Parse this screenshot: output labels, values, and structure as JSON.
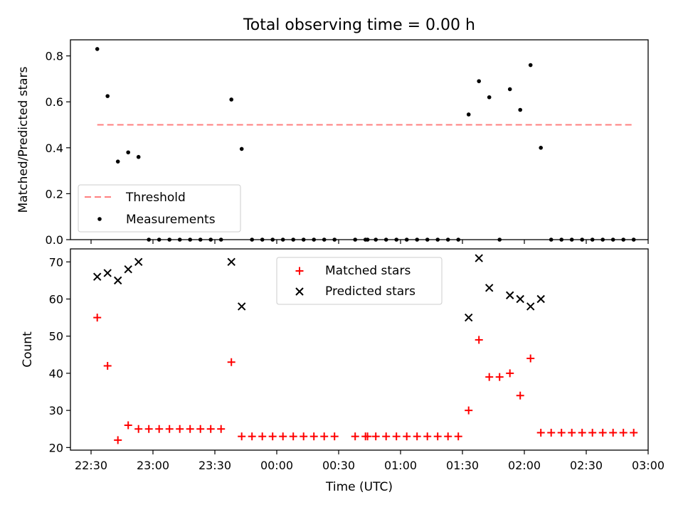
{
  "chart_data": [
    {
      "type": "scatter",
      "title": "Total observing time = 0.00 h",
      "ylabel": "Matched/Predicted stars",
      "xlabel": "",
      "ylim": [
        0,
        0.87
      ],
      "yticks": [
        0.0,
        0.2,
        0.4,
        0.6,
        0.8
      ],
      "legend": {
        "placement": "lower-left",
        "entries": [
          "Threshold",
          "Measurements"
        ]
      },
      "threshold": {
        "name": "Threshold",
        "value": 0.5,
        "x_start": "22:33",
        "x_end": "02:53",
        "color": "#ff7f7f",
        "style": "dashed"
      },
      "series": [
        {
          "name": "Measurements",
          "color": "#000000",
          "marker": "dot",
          "points": [
            [
              "22:33",
              0.83
            ],
            [
              "22:38",
              0.625
            ],
            [
              "22:43",
              0.34
            ],
            [
              "22:48",
              0.38
            ],
            [
              "22:53",
              0.36
            ],
            [
              "22:58",
              0
            ],
            [
              "23:03",
              0
            ],
            [
              "23:08",
              0
            ],
            [
              "23:13",
              0
            ],
            [
              "23:18",
              0
            ],
            [
              "23:23",
              0
            ],
            [
              "23:28",
              0
            ],
            [
              "23:33",
              0
            ],
            [
              "23:38",
              0.61
            ],
            [
              "23:43",
              0.395
            ],
            [
              "23:48",
              0
            ],
            [
              "23:53",
              0
            ],
            [
              "23:58",
              0
            ],
            [
              "00:03",
              0
            ],
            [
              "00:08",
              0
            ],
            [
              "00:13",
              0
            ],
            [
              "00:18",
              0
            ],
            [
              "00:23",
              0
            ],
            [
              "00:28",
              0
            ],
            [
              "00:38",
              0
            ],
            [
              "00:43",
              0
            ],
            [
              "00:44",
              0
            ],
            [
              "00:48",
              0
            ],
            [
              "00:53",
              0
            ],
            [
              "00:58",
              0
            ],
            [
              "01:03",
              0
            ],
            [
              "01:08",
              0
            ],
            [
              "01:13",
              0
            ],
            [
              "01:18",
              0
            ],
            [
              "01:23",
              0
            ],
            [
              "01:28",
              0
            ],
            [
              "01:33",
              0.545
            ],
            [
              "01:38",
              0.69
            ],
            [
              "01:43",
              0.62
            ],
            [
              "01:48",
              0
            ],
            [
              "01:53",
              0.655
            ],
            [
              "01:58",
              0.565
            ],
            [
              "02:03",
              0.76
            ],
            [
              "02:08",
              0.4
            ],
            [
              "02:13",
              0
            ],
            [
              "02:18",
              0
            ],
            [
              "02:23",
              0
            ],
            [
              "02:28",
              0
            ],
            [
              "02:33",
              0
            ],
            [
              "02:38",
              0
            ],
            [
              "02:43",
              0
            ],
            [
              "02:48",
              0
            ],
            [
              "02:53",
              0
            ]
          ]
        }
      ]
    },
    {
      "type": "scatter",
      "title": "",
      "xlabel": "Time (UTC)",
      "ylabel": "Count",
      "ylim": [
        19.3,
        73.5
      ],
      "yticks": [
        20,
        30,
        40,
        50,
        60,
        70
      ],
      "xlim": [
        "22:20",
        "03:00"
      ],
      "xticks": [
        "22:30",
        "23:00",
        "23:30",
        "00:00",
        "00:30",
        "01:00",
        "01:30",
        "02:00",
        "02:30",
        "03:00"
      ],
      "legend": {
        "placement": "upper-center",
        "entries": [
          "Matched stars",
          "Predicted stars"
        ]
      },
      "series": [
        {
          "name": "Matched stars",
          "color": "#ff0000",
          "marker": "plus",
          "points": [
            [
              "22:33",
              55
            ],
            [
              "22:38",
              42
            ],
            [
              "22:43",
              22
            ],
            [
              "22:48",
              26
            ],
            [
              "22:53",
              25
            ],
            [
              "22:58",
              25
            ],
            [
              "23:03",
              25
            ],
            [
              "23:08",
              25
            ],
            [
              "23:13",
              25
            ],
            [
              "23:18",
              25
            ],
            [
              "23:23",
              25
            ],
            [
              "23:28",
              25
            ],
            [
              "23:33",
              25
            ],
            [
              "23:38",
              43
            ],
            [
              "23:43",
              23
            ],
            [
              "23:48",
              23
            ],
            [
              "23:53",
              23
            ],
            [
              "23:58",
              23
            ],
            [
              "00:03",
              23
            ],
            [
              "00:08",
              23
            ],
            [
              "00:13",
              23
            ],
            [
              "00:18",
              23
            ],
            [
              "00:23",
              23
            ],
            [
              "00:28",
              23
            ],
            [
              "00:38",
              23
            ],
            [
              "00:43",
              23
            ],
            [
              "00:44",
              23
            ],
            [
              "00:48",
              23
            ],
            [
              "00:53",
              23
            ],
            [
              "00:58",
              23
            ],
            [
              "01:03",
              23
            ],
            [
              "01:08",
              23
            ],
            [
              "01:13",
              23
            ],
            [
              "01:18",
              23
            ],
            [
              "01:23",
              23
            ],
            [
              "01:28",
              23
            ],
            [
              "01:33",
              30
            ],
            [
              "01:38",
              49
            ],
            [
              "01:43",
              39
            ],
            [
              "01:48",
              39
            ],
            [
              "01:53",
              40
            ],
            [
              "01:58",
              34
            ],
            [
              "02:03",
              44
            ],
            [
              "02:08",
              24
            ],
            [
              "02:13",
              24
            ],
            [
              "02:18",
              24
            ],
            [
              "02:23",
              24
            ],
            [
              "02:28",
              24
            ],
            [
              "02:33",
              24
            ],
            [
              "02:38",
              24
            ],
            [
              "02:43",
              24
            ],
            [
              "02:48",
              24
            ],
            [
              "02:53",
              24
            ]
          ]
        },
        {
          "name": "Predicted stars",
          "color": "#000000",
          "marker": "x",
          "points": [
            [
              "22:33",
              66
            ],
            [
              "22:38",
              67
            ],
            [
              "22:43",
              65
            ],
            [
              "22:48",
              68
            ],
            [
              "22:53",
              70
            ],
            [
              "23:38",
              70
            ],
            [
              "23:43",
              58
            ],
            [
              "01:33",
              55
            ],
            [
              "01:38",
              71
            ],
            [
              "01:43",
              63
            ],
            [
              "01:53",
              61
            ],
            [
              "01:58",
              60
            ],
            [
              "02:03",
              58
            ],
            [
              "02:08",
              60
            ]
          ]
        }
      ]
    }
  ]
}
